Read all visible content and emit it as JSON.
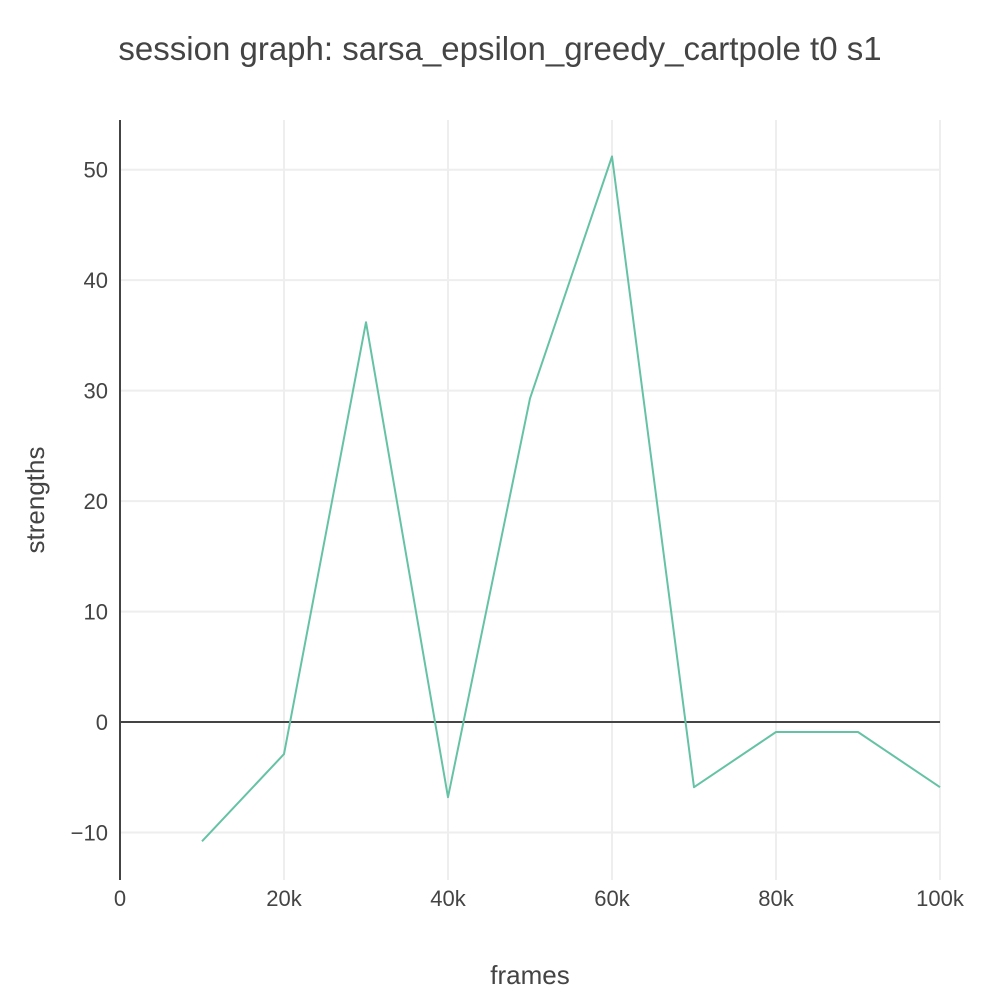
{
  "chart_data": {
    "type": "line",
    "title": "session graph: sarsa_epsilon_greedy_cartpole t0 s1",
    "xlabel": "frames",
    "ylabel": "strengths",
    "xlim": [
      0,
      100000
    ],
    "ylim": [
      -14.3,
      54.5
    ],
    "x_ticks": [
      {
        "value": 0,
        "label": "0"
      },
      {
        "value": 20000,
        "label": "20k"
      },
      {
        "value": 40000,
        "label": "40k"
      },
      {
        "value": 60000,
        "label": "60k"
      },
      {
        "value": 80000,
        "label": "80k"
      },
      {
        "value": 100000,
        "label": "100k"
      }
    ],
    "y_ticks": [
      {
        "value": -10,
        "label": "−10"
      },
      {
        "value": 0,
        "label": "0"
      },
      {
        "value": 10,
        "label": "10"
      },
      {
        "value": 20,
        "label": "20"
      },
      {
        "value": 30,
        "label": "30"
      },
      {
        "value": 40,
        "label": "40"
      },
      {
        "value": 50,
        "label": "50"
      }
    ],
    "grid": true,
    "series": [
      {
        "color": "#66c2a5",
        "x": [
          10000,
          20000,
          30000,
          40000,
          50000,
          60000,
          70000,
          80000,
          90000,
          100000
        ],
        "y": [
          -10.8,
          -2.9,
          36.2,
          -6.8,
          29.3,
          51.2,
          -5.9,
          -0.9,
          -0.9,
          -5.9
        ]
      }
    ]
  }
}
